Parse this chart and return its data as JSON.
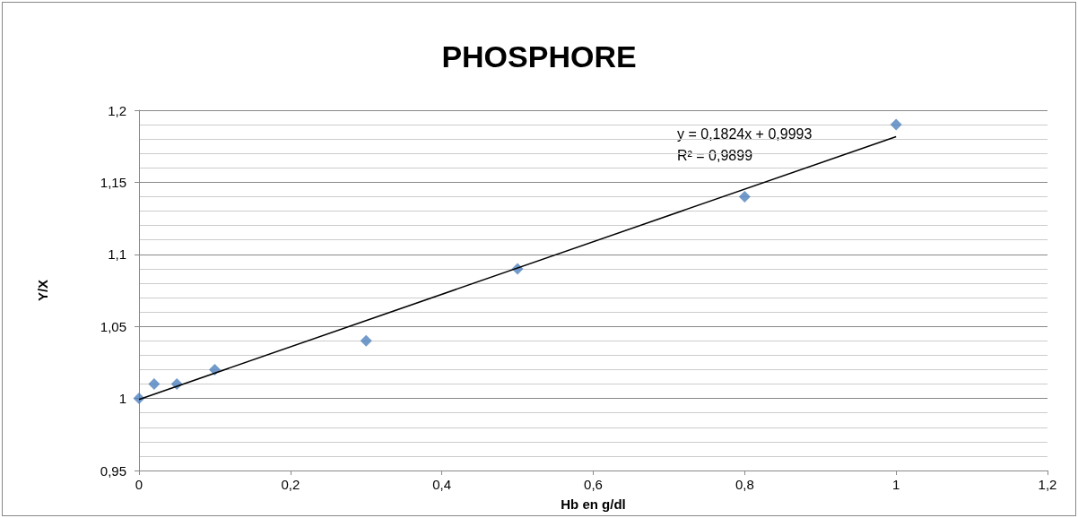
{
  "chart_data": {
    "type": "scatter",
    "title": "PHOSPHORE",
    "xlabel": "Hb en g/dl",
    "ylabel": "Y/X",
    "series": [
      {
        "marker": "diamond",
        "color": "#4f81bd",
        "x": [
          0,
          0.02,
          0.05,
          0.1,
          0.3,
          0.5,
          0.8,
          1
        ],
        "values": [
          1,
          1.01,
          1.01,
          1.02,
          1.04,
          1.09,
          1.14,
          1.19
        ]
      },
      {
        "type": "line",
        "marker": "none",
        "color": "#000000",
        "x": [
          0,
          1
        ],
        "values": [
          0.9993,
          1.1817
        ]
      }
    ],
    "annotations": [
      "y = 0,1824x + 0,9993",
      "R² = 0,9899"
    ],
    "xlim": [
      0,
      1.2
    ],
    "xticks": [
      0,
      {
        "value": 0.2,
        "label": "0,2"
      },
      {
        "value": 0.4,
        "label": "0,4"
      },
      {
        "value": 0.6,
        "label": "0,6"
      },
      {
        "value": 0.8,
        "label": "0,8"
      },
      1,
      {
        "value": 1.2,
        "label": "1,2"
      }
    ],
    "ylim": [
      0.95,
      1.2
    ],
    "yticks": [
      {
        "value": 0.95,
        "label": "0,95"
      },
      1,
      {
        "value": 1.05,
        "label": "1,05"
      },
      {
        "value": 1.1,
        "label": "1,1"
      },
      {
        "value": 1.15,
        "label": "1,15"
      },
      {
        "value": 1.2,
        "label": "1,2"
      }
    ],
    "grid": "y",
    "line_style": "solid"
  }
}
